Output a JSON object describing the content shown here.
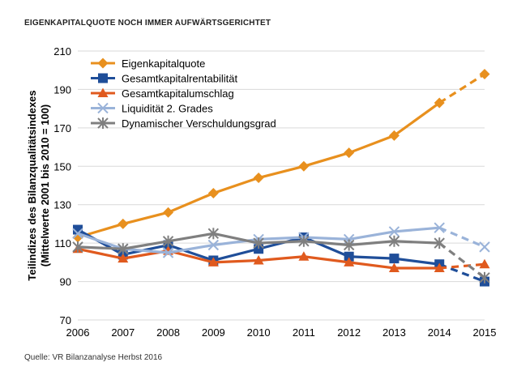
{
  "header": {
    "title": "EIGENKAPITALQUOTE NOCH IMMER AUFWÄRTSGERICHTET",
    "source": "Quelle: VR Bilanzanalyse Herbst 2016"
  },
  "chart_data": {
    "type": "line",
    "title": "EIGENKAPITALQUOTE NOCH IMMER AUFWÄRTSGERICHTET",
    "ylabel_lines": [
      "Teilindizes des Bilanzqualitätsindexes",
      "(Mittelwerte 2001 bis 2010 = 100)"
    ],
    "xlabel": "",
    "categories": [
      "2006",
      "2007",
      "2008",
      "2009",
      "2010",
      "2011",
      "2012",
      "2013",
      "2014",
      "2015"
    ],
    "ylim": [
      70,
      210
    ],
    "yticks": [
      70,
      90,
      110,
      130,
      150,
      170,
      190,
      210
    ],
    "grid": true,
    "legend_position": "top-left",
    "dashed_last_segment": true,
    "series": [
      {
        "name": "Eigenkapitalquote",
        "color": "#e8901e",
        "marker": "diamond",
        "values": [
          113,
          120,
          126,
          136,
          144,
          150,
          157,
          166,
          183,
          198
        ]
      },
      {
        "name": "Gesamtkapitalrentabilität",
        "color": "#1f4e99",
        "marker": "square",
        "values": [
          117,
          104,
          109,
          101,
          107,
          113,
          103,
          102,
          99,
          90
        ]
      },
      {
        "name": "Gesamtkapitalumschlag",
        "color": "#e05a1e",
        "marker": "triangle",
        "values": [
          107,
          102,
          106,
          100,
          101,
          103,
          100,
          97,
          97,
          99
        ]
      },
      {
        "name": "Liquidität 2. Grades",
        "color": "#9ab3d9",
        "marker": "x",
        "values": [
          115,
          107,
          105,
          109,
          112,
          113,
          112,
          116,
          118,
          108
        ]
      },
      {
        "name": "Dynamischer Verschuldungsgrad",
        "color": "#7f7f7f",
        "marker": "star",
        "values": [
          108,
          107,
          111,
          115,
          110,
          111,
          109,
          111,
          110,
          92
        ]
      }
    ]
  }
}
